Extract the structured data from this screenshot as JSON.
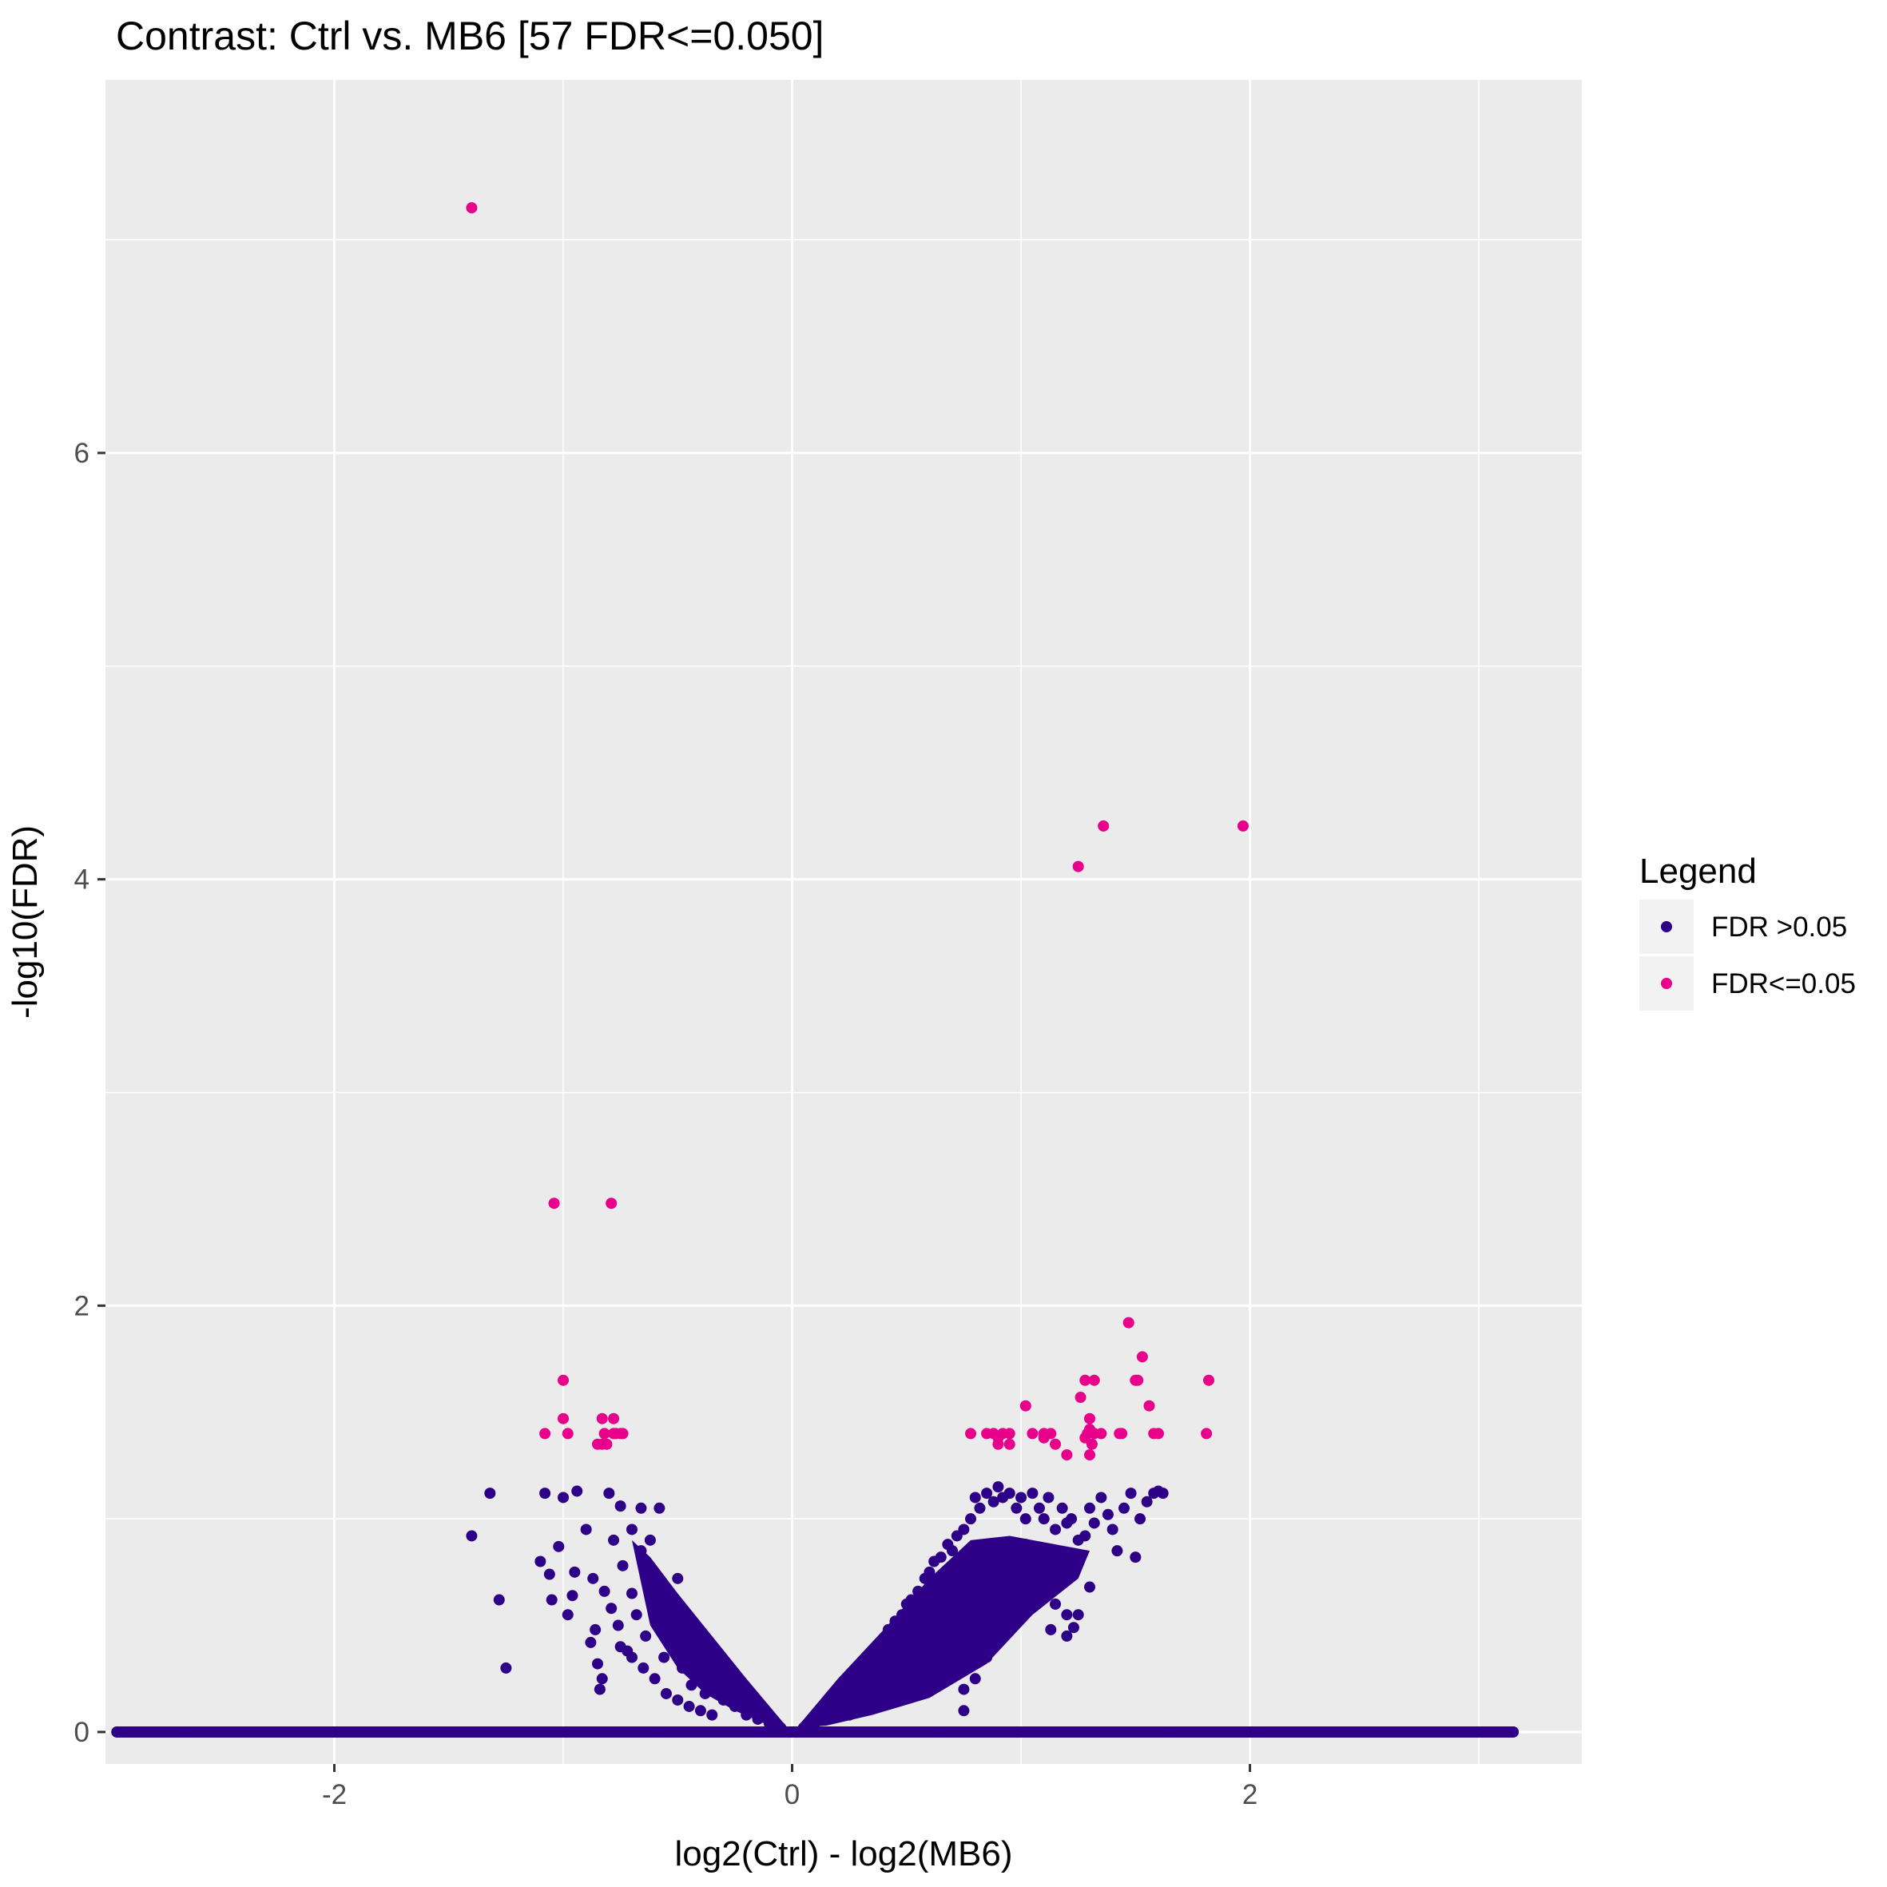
{
  "chart_data": {
    "type": "scatter",
    "title": "Contrast: Ctrl vs. MB6 [57 FDR<=0.050]",
    "xlabel": "log2(Ctrl) - log2(MB6)",
    "ylabel": "-log10(FDR)",
    "xlim": [
      -3.0,
      3.45
    ],
    "ylim": [
      -0.15,
      7.75
    ],
    "x_ticks": [
      -2,
      0,
      2
    ],
    "x_tick_labels": [
      "-2",
      "0",
      "2"
    ],
    "y_ticks": [
      0,
      2,
      4,
      6
    ],
    "y_tick_labels": [
      "0",
      "2",
      "4",
      "6"
    ],
    "grid": true,
    "background": "#ebebeb",
    "legend": {
      "title": "Legend",
      "position": "right",
      "entries": [
        {
          "label": "FDR >0.05",
          "color": "#2e0087"
        },
        {
          "label": "FDR<=0.05",
          "color": "#e8008a"
        }
      ]
    },
    "series": [
      {
        "name": "FDR>0.05",
        "color": "#2e0087",
        "points": [
          [
            -2.95,
            0
          ],
          [
            -2.9,
            0
          ],
          [
            -2.8,
            0
          ],
          [
            -2.75,
            0
          ],
          [
            -2.7,
            0
          ],
          [
            -2.6,
            0
          ],
          [
            -2.4,
            0
          ],
          [
            -2.2,
            0
          ],
          [
            -2.0,
            0
          ],
          [
            -1.8,
            0
          ],
          [
            -1.6,
            0
          ],
          [
            -1.4,
            0
          ],
          [
            -1.2,
            0
          ],
          [
            -1.0,
            0
          ],
          [
            -0.8,
            0
          ],
          [
            -0.6,
            0
          ],
          [
            -0.4,
            0
          ],
          [
            -0.2,
            0
          ],
          [
            0,
            0
          ],
          [
            0.2,
            0
          ],
          [
            0.4,
            0
          ],
          [
            0.6,
            0
          ],
          [
            0.8,
            0
          ],
          [
            1.0,
            0
          ],
          [
            1.2,
            0
          ],
          [
            1.4,
            0
          ],
          [
            1.6,
            0
          ],
          [
            1.8,
            0
          ],
          [
            2.0,
            0
          ],
          [
            2.2,
            0
          ],
          [
            2.4,
            0
          ],
          [
            2.6,
            0
          ],
          [
            2.8,
            0
          ],
          [
            2.95,
            0
          ],
          [
            3.05,
            0
          ],
          [
            3.1,
            0
          ],
          [
            3.15,
            0
          ],
          [
            -1.4,
            0.92
          ],
          [
            -1.32,
            1.12
          ],
          [
            -1.28,
            0.62
          ],
          [
            -1.25,
            0.3
          ],
          [
            -1.1,
            0.8
          ],
          [
            -1.08,
            1.12
          ],
          [
            -1.06,
            0.74
          ],
          [
            -1.05,
            0.62
          ],
          [
            -1.02,
            0.87
          ],
          [
            -1.0,
            1.1
          ],
          [
            -0.98,
            0.55
          ],
          [
            -0.96,
            0.64
          ],
          [
            -0.95,
            0.75
          ],
          [
            -0.94,
            1.13
          ],
          [
            -0.9,
            0.95
          ],
          [
            -0.88,
            0.42
          ],
          [
            -0.87,
            0.72
          ],
          [
            -0.86,
            0.48
          ],
          [
            -0.85,
            0.32
          ],
          [
            -0.84,
            0.2
          ],
          [
            -0.83,
            0.25
          ],
          [
            -0.82,
            0.66
          ],
          [
            -0.8,
            1.12
          ],
          [
            -0.79,
            0.58
          ],
          [
            -0.78,
            0.9
          ],
          [
            -0.76,
            0.5
          ],
          [
            -0.75,
            1.06
          ],
          [
            -0.74,
            0.78
          ],
          [
            -0.72,
            0.38
          ],
          [
            -0.7,
            0.65
          ],
          [
            -0.68,
            0.55
          ],
          [
            -0.66,
            1.05
          ],
          [
            -0.64,
            0.45
          ],
          [
            -0.62,
            0.7
          ],
          [
            -0.6,
            0.6
          ],
          [
            -0.58,
            1.05
          ],
          [
            -0.56,
            0.35
          ],
          [
            -0.55,
            0.52
          ],
          [
            -0.52,
            0.42
          ],
          [
            -0.5,
            0.72
          ],
          [
            -0.48,
            0.3
          ],
          [
            -0.46,
            0.5
          ],
          [
            -0.44,
            0.22
          ],
          [
            -0.42,
            0.4
          ],
          [
            -0.4,
            0.32
          ],
          [
            -0.38,
            0.18
          ],
          [
            -0.35,
            0.28
          ],
          [
            -0.32,
            0.2
          ],
          [
            -0.3,
            0.15
          ],
          [
            -0.28,
            0.22
          ],
          [
            -0.25,
            0.12
          ],
          [
            -0.22,
            0.15
          ],
          [
            -0.2,
            0.08
          ],
          [
            -0.18,
            0.12
          ],
          [
            -0.15,
            0.06
          ],
          [
            -0.12,
            0.07
          ],
          [
            -0.1,
            0.04
          ],
          [
            -0.08,
            0.05
          ],
          [
            -0.05,
            0.02
          ],
          [
            0.05,
            0.02
          ],
          [
            0.08,
            0.05
          ],
          [
            0.1,
            0.04
          ],
          [
            0.12,
            0.08
          ],
          [
            0.15,
            0.1
          ],
          [
            0.18,
            0.12
          ],
          [
            0.2,
            0.15
          ],
          [
            0.22,
            0.18
          ],
          [
            0.25,
            0.22
          ],
          [
            0.28,
            0.25
          ],
          [
            0.3,
            0.3
          ],
          [
            0.32,
            0.28
          ],
          [
            0.35,
            0.35
          ],
          [
            0.38,
            0.4
          ],
          [
            0.4,
            0.42
          ],
          [
            0.42,
            0.48
          ],
          [
            0.45,
            0.52
          ],
          [
            0.48,
            0.55
          ],
          [
            0.5,
            0.6
          ],
          [
            0.52,
            0.62
          ],
          [
            0.55,
            0.66
          ],
          [
            0.58,
            0.72
          ],
          [
            0.6,
            0.75
          ],
          [
            0.62,
            0.8
          ],
          [
            0.65,
            0.82
          ],
          [
            0.68,
            0.88
          ],
          [
            0.7,
            0.85
          ],
          [
            0.72,
            0.92
          ],
          [
            0.75,
            0.95
          ],
          [
            0.78,
            1.0
          ],
          [
            0.8,
            1.1
          ],
          [
            0.82,
            1.05
          ],
          [
            0.85,
            1.12
          ],
          [
            0.88,
            1.08
          ],
          [
            0.9,
            1.15
          ],
          [
            0.92,
            1.1
          ],
          [
            0.95,
            1.12
          ],
          [
            0.98,
            1.05
          ],
          [
            1.0,
            1.1
          ],
          [
            1.02,
            1.0
          ],
          [
            1.05,
            1.12
          ],
          [
            1.08,
            1.05
          ],
          [
            1.1,
            1.0
          ],
          [
            1.12,
            1.1
          ],
          [
            1.15,
            0.95
          ],
          [
            1.18,
            1.05
          ],
          [
            1.2,
            0.98
          ],
          [
            1.22,
            1.0
          ],
          [
            1.25,
            0.9
          ],
          [
            1.28,
            0.92
          ],
          [
            1.3,
            1.05
          ],
          [
            1.32,
            0.98
          ],
          [
            1.35,
            1.1
          ],
          [
            1.38,
            1.02
          ],
          [
            1.4,
            0.95
          ],
          [
            1.42,
            0.85
          ],
          [
            1.45,
            1.05
          ],
          [
            1.48,
            1.12
          ],
          [
            1.5,
            0.82
          ],
          [
            1.52,
            1.0
          ],
          [
            1.55,
            1.08
          ],
          [
            1.58,
            1.12
          ],
          [
            1.6,
            1.13
          ],
          [
            1.62,
            1.12
          ],
          [
            0.6,
            0.4
          ],
          [
            0.65,
            0.35
          ],
          [
            0.7,
            0.3
          ],
          [
            0.75,
            0.2
          ],
          [
            0.8,
            0.25
          ],
          [
            0.85,
            0.35
          ],
          [
            0.9,
            0.42
          ],
          [
            0.95,
            0.5
          ],
          [
            1.0,
            0.55
          ],
          [
            1.05,
            0.62
          ],
          [
            1.1,
            0.7
          ],
          [
            1.15,
            0.6
          ],
          [
            1.2,
            0.45
          ],
          [
            1.25,
            0.55
          ],
          [
            1.3,
            0.68
          ],
          [
            0.75,
            0.1
          ],
          [
            0.55,
            0.2
          ],
          [
            0.45,
            0.15
          ],
          [
            0.35,
            0.12
          ],
          [
            0.25,
            0.08
          ],
          [
            1.13,
            0.48
          ],
          [
            1.23,
            0.49
          ],
          [
            1.2,
            0.55
          ],
          [
            0.62,
            0.5
          ],
          [
            0.72,
            0.6
          ],
          [
            0.82,
            0.7
          ],
          [
            0.92,
            0.8
          ],
          [
            1.02,
            0.88
          ],
          [
            1.12,
            0.82
          ],
          [
            -0.6,
            0.25
          ],
          [
            -0.55,
            0.18
          ],
          [
            -0.5,
            0.15
          ],
          [
            -0.45,
            0.12
          ],
          [
            -0.4,
            0.1
          ],
          [
            -0.35,
            0.08
          ],
          [
            -0.65,
            0.3
          ],
          [
            -0.7,
            0.35
          ],
          [
            -0.75,
            0.4
          ],
          [
            -0.66,
            0.85
          ],
          [
            -0.62,
            0.9
          ],
          [
            -0.7,
            0.95
          ]
        ]
      },
      {
        "name": "FDR<=0.05",
        "color": "#e8008a",
        "points": [
          [
            -1.4,
            7.15
          ],
          [
            -1.04,
            2.48
          ],
          [
            -0.79,
            2.48
          ],
          [
            -1.0,
            1.65
          ],
          [
            -1.0,
            1.47
          ],
          [
            -0.98,
            1.4
          ],
          [
            -1.08,
            1.4
          ],
          [
            -0.85,
            1.35
          ],
          [
            -0.83,
            1.47
          ],
          [
            -0.78,
            1.47
          ],
          [
            -0.82,
            1.4
          ],
          [
            -0.75,
            1.4
          ],
          [
            -0.78,
            1.4
          ],
          [
            -0.77,
            1.4
          ],
          [
            -0.81,
            1.35
          ],
          [
            -0.83,
            1.35
          ],
          [
            -0.74,
            1.4
          ],
          [
            1.25,
            4.06
          ],
          [
            1.36,
            4.25
          ],
          [
            1.97,
            4.25
          ],
          [
            1.47,
            1.92
          ],
          [
            1.53,
            1.76
          ],
          [
            1.28,
            1.65
          ],
          [
            1.32,
            1.65
          ],
          [
            1.5,
            1.65
          ],
          [
            1.51,
            1.65
          ],
          [
            1.26,
            1.57
          ],
          [
            1.56,
            1.53
          ],
          [
            1.02,
            1.53
          ],
          [
            1.3,
            1.47
          ],
          [
            1.82,
            1.65
          ],
          [
            1.81,
            1.4
          ],
          [
            0.78,
            1.4
          ],
          [
            0.85,
            1.4
          ],
          [
            0.88,
            1.4
          ],
          [
            0.9,
            1.35
          ],
          [
            0.92,
            1.4
          ],
          [
            0.95,
            1.4
          ],
          [
            1.05,
            1.4
          ],
          [
            1.1,
            1.4
          ],
          [
            1.13,
            1.4
          ],
          [
            1.15,
            1.35
          ],
          [
            1.2,
            1.3
          ],
          [
            1.29,
            1.4
          ],
          [
            1.3,
            1.3
          ],
          [
            1.31,
            1.35
          ],
          [
            1.32,
            1.4
          ],
          [
            1.35,
            1.4
          ],
          [
            1.43,
            1.4
          ],
          [
            1.44,
            1.4
          ],
          [
            1.58,
            1.4
          ],
          [
            1.6,
            1.4
          ],
          [
            0.9,
            1.38
          ],
          [
            0.95,
            1.35
          ],
          [
            1.1,
            1.38
          ],
          [
            1.3,
            1.42
          ],
          [
            1.28,
            1.38
          ]
        ]
      }
    ]
  }
}
